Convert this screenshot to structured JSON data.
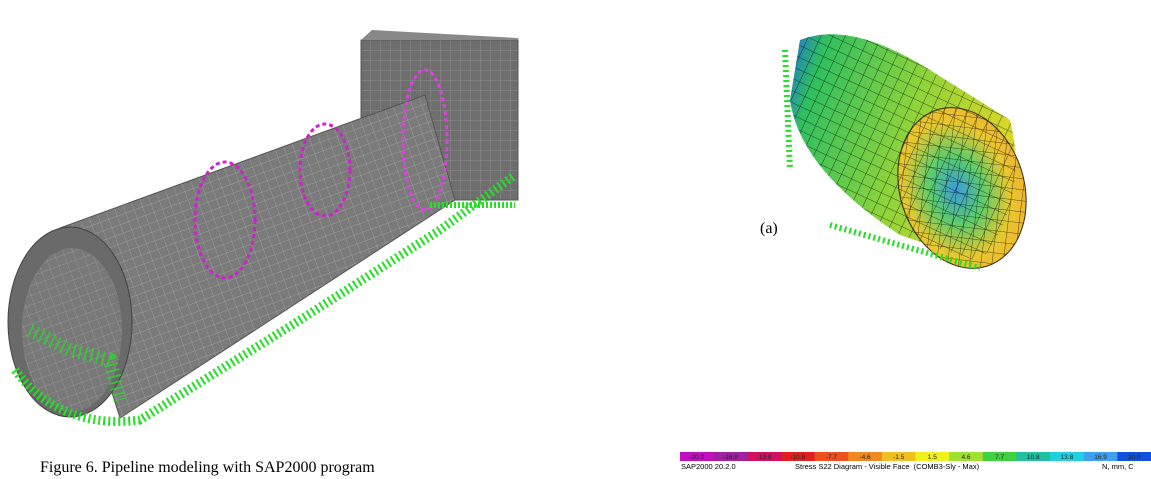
{
  "figure": {
    "caption": "Figure 6. Pipeline modeling with SAP2000 program",
    "panel_label": "(a)"
  },
  "legend": {
    "ticks": [
      "-20.0",
      "-16.9",
      "-13.8",
      "-10.8",
      "-7.7",
      "-4.6",
      "-1.5",
      "1.5",
      "4.6",
      "7.7",
      "10.8",
      "13.8",
      "16.9",
      "20.0"
    ],
    "program": "SAP2000 20.2.0",
    "title": "Stress S22 Diagram - Visible Face  (COMB3-Sly - Max)",
    "units": "N, mm, C"
  }
}
